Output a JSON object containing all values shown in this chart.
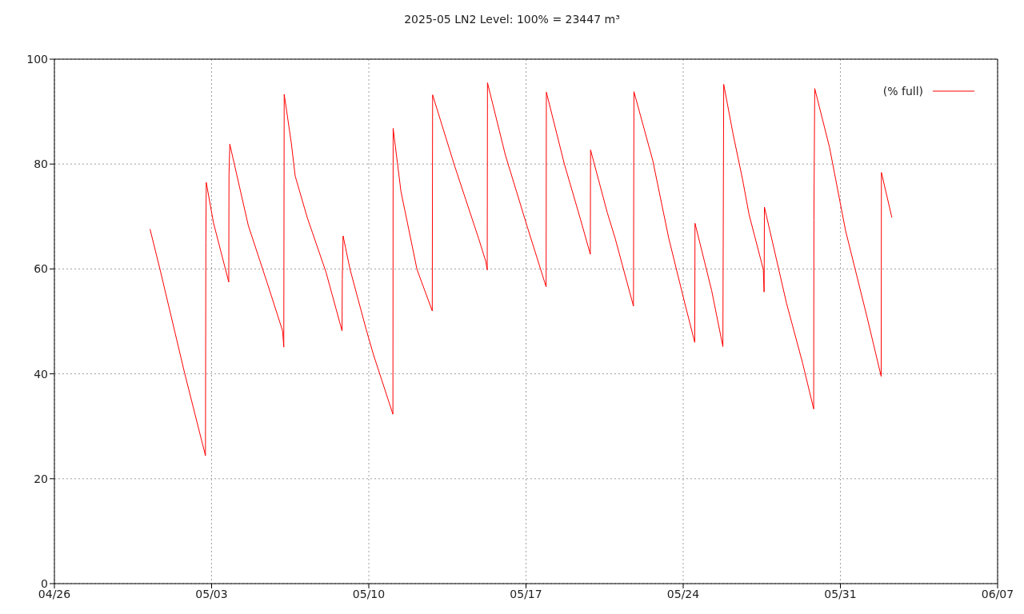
{
  "chart_data": {
    "type": "line",
    "title": "2025-05 LN2 Level: 100% = 23447 m³",
    "x": [
      "2025-04-30T06:11",
      "2025-04-30T16:45",
      "2025-05-01T19:22",
      "2025-05-02T17:26",
      "2025-05-02T17:52",
      "2025-05-02T18:17",
      "2025-05-03T02:01",
      "2025-05-03T18:20",
      "2025-05-03T18:35",
      "2025-05-03T19:27",
      "2025-05-04T15:12",
      "2025-05-05T11:18",
      "2025-05-06T03:52",
      "2025-05-06T05:09",
      "2025-05-06T05:35",
      "2025-05-06T13:03",
      "2025-05-06T17:21",
      "2025-05-07T06:14",
      "2025-05-08T02:14",
      "2025-05-08T19:24",
      "2025-05-08T19:40",
      "2025-05-08T20:32",
      "2025-05-09T04:00",
      "2025-05-09T21:10",
      "2025-05-10T04:54",
      "2025-05-11T01:46",
      "2025-05-11T02:01",
      "2025-05-11T10:21",
      "2025-05-12T03:31",
      "2025-05-12T19:50",
      "2025-05-12T20:11",
      "2025-05-13T19:37",
      "2025-05-14T21:23",
      "2025-05-15T05:06",
      "2025-05-15T06:34",
      "2025-05-15T06:50",
      "2025-05-16T01:59",
      "2025-05-17T00:54",
      "2025-05-17T21:30",
      "2025-05-17T21:46",
      "2025-05-18T17:00",
      "2025-05-19T10:11",
      "2025-05-19T20:44",
      "2025-05-19T21:00",
      "2025-05-20T14:46",
      "2025-05-20T23:21",
      "2025-05-21T18:51",
      "2025-05-21T19:22",
      "2025-05-22T15:27",
      "2025-05-23T08:38",
      "2025-05-24T01:48",
      "2025-05-24T12:22",
      "2025-05-24T12:37",
      "2025-05-25T06:24",
      "2025-05-25T18:25",
      "2025-05-25T19:17",
      "2025-05-26T05:19",
      "2025-05-26T15:17",
      "2025-05-26T22:30",
      "2025-05-27T13:37",
      "2025-05-27T14:28",
      "2025-05-27T14:49",
      "2025-05-28T14:31",
      "2025-05-29T07:41",
      "2025-05-29T19:27",
      "2025-05-29T19:42",
      "2025-05-29T20:34",
      "2025-05-30T12:22",
      "2025-05-31T05:32",
      "2025-06-01T04:23",
      "2025-06-01T19:35",
      "2025-06-01T19:50",
      "2025-06-02T07:00"
    ],
    "series": [
      {
        "name": "(% full)",
        "color": "#ff0000",
        "values": [
          67.6,
          60,
          40,
          24.4,
          65.0,
          76.5,
          68.8,
          57.5,
          78.0,
          83.8,
          68.3,
          57.4,
          48.2,
          45.1,
          93.3,
          84.2,
          77.7,
          69.8,
          59.4,
          48.2,
          58.0,
          66.3,
          59.9,
          48.5,
          43.7,
          32.3,
          86.8,
          74.8,
          59.9,
          52.0,
          93.2,
          79.7,
          65.8,
          61.4,
          59.8,
          95.5,
          81.7,
          68.3,
          56.6,
          93.7,
          80.0,
          69.5,
          62.8,
          82.7,
          70.8,
          65.8,
          52.9,
          93.8,
          80.7,
          65.8,
          53.4,
          46.0,
          68.7,
          55.9,
          45.2,
          95.2,
          85.7,
          77.2,
          70.3,
          59.9,
          55.6,
          71.8,
          53.4,
          42.0,
          33.3,
          69.3,
          94.4,
          83.2,
          67.3,
          50.9,
          39.5,
          78.4,
          69.8
        ]
      }
    ],
    "xlim": [
      "2025-04-26",
      "2025-06-07"
    ],
    "xticks": [
      {
        "value": "2025-04-26",
        "label": "04/26"
      },
      {
        "value": "2025-05-03",
        "label": "05/03"
      },
      {
        "value": "2025-05-10",
        "label": "05/10"
      },
      {
        "value": "2025-05-17",
        "label": "05/17"
      },
      {
        "value": "2025-05-24",
        "label": "05/24"
      },
      {
        "value": "2025-05-31",
        "label": "05/31"
      },
      {
        "value": "2025-06-07",
        "label": "06/07"
      }
    ],
    "ylim": [
      0,
      100
    ],
    "yticks": [
      0,
      20,
      40,
      60,
      80,
      100
    ],
    "grid": true,
    "legend": "top right",
    "marker": "none",
    "line_style": "solid"
  }
}
